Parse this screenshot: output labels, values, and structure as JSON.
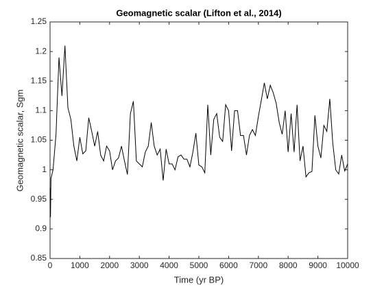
{
  "chart_data": {
    "type": "line",
    "title": "Geomagnetic scalar (Lifton et al., 2014)",
    "x_label": "Time (yr BP)",
    "y_label": "Geomagnetic scalar, Sgm",
    "x": [
      0,
      15,
      30,
      100,
      200,
      300,
      400,
      500,
      600,
      700,
      800,
      900,
      1000,
      1100,
      1200,
      1300,
      1400,
      1500,
      1600,
      1700,
      1800,
      1900,
      2000,
      2100,
      2200,
      2300,
      2400,
      2500,
      2600,
      2700,
      2800,
      2900,
      3000,
      3100,
      3200,
      3300,
      3400,
      3500,
      3600,
      3700,
      3800,
      3900,
      4000,
      4100,
      4200,
      4300,
      4400,
      4500,
      4600,
      4700,
      4800,
      4900,
      5000,
      5100,
      5200,
      5300,
      5400,
      5500,
      5600,
      5700,
      5800,
      5900,
      6000,
      6100,
      6200,
      6300,
      6400,
      6500,
      6600,
      6700,
      6800,
      6900,
      7000,
      7100,
      7200,
      7300,
      7400,
      7500,
      7600,
      7700,
      7800,
      7900,
      8000,
      8100,
      8200,
      8300,
      8400,
      8500,
      8600,
      8700,
      8800,
      8900,
      9000,
      9100,
      9200,
      9300,
      9400,
      9500,
      9600,
      9700,
      9800,
      9900,
      10000
    ],
    "series": [
      {
        "name": "Sgm",
        "color": "#000000",
        "values": [
          0.97,
          0.92,
          0.985,
          1.0,
          1.06,
          1.19,
          1.125,
          1.21,
          1.105,
          1.085,
          1.04,
          1.015,
          1.055,
          1.027,
          1.032,
          1.088,
          1.065,
          1.04,
          1.065,
          1.025,
          1.015,
          1.04,
          1.032,
          1.0,
          1.015,
          1.02,
          1.04,
          1.015,
          0.992,
          1.095,
          1.116,
          1.015,
          1.01,
          1.005,
          1.03,
          1.04,
          1.08,
          1.04,
          1.025,
          1.035,
          0.982,
          1.035,
          1.01,
          1.01,
          1.0,
          1.022,
          1.025,
          1.018,
          1.018,
          1.005,
          1.03,
          1.062,
          1.008,
          1.005,
          0.995,
          1.11,
          1.025,
          1.085,
          1.095,
          1.055,
          1.048,
          1.11,
          1.1,
          1.032,
          1.1,
          1.1,
          1.058,
          1.058,
          1.025,
          1.058,
          1.068,
          1.058,
          1.09,
          1.118,
          1.147,
          1.12,
          1.143,
          1.13,
          1.112,
          1.08,
          1.06,
          1.1,
          1.03,
          1.095,
          1.03,
          1.11,
          1.015,
          1.04,
          0.988,
          0.995,
          0.997,
          1.092,
          1.04,
          1.02,
          1.075,
          1.065,
          1.12,
          1.045,
          1.0,
          0.993,
          1.025,
          0.998,
          1.01
        ]
      }
    ],
    "xlim": [
      0,
      10000
    ],
    "xticks": [
      0,
      1000,
      2000,
      3000,
      4000,
      5000,
      6000,
      7000,
      8000,
      9000,
      10000
    ],
    "ylim": [
      0.85,
      1.25
    ],
    "yticks": [
      0.85,
      0.9,
      0.95,
      1,
      1.05,
      1.1,
      1.15,
      1.2,
      1.25
    ],
    "grid": false
  }
}
